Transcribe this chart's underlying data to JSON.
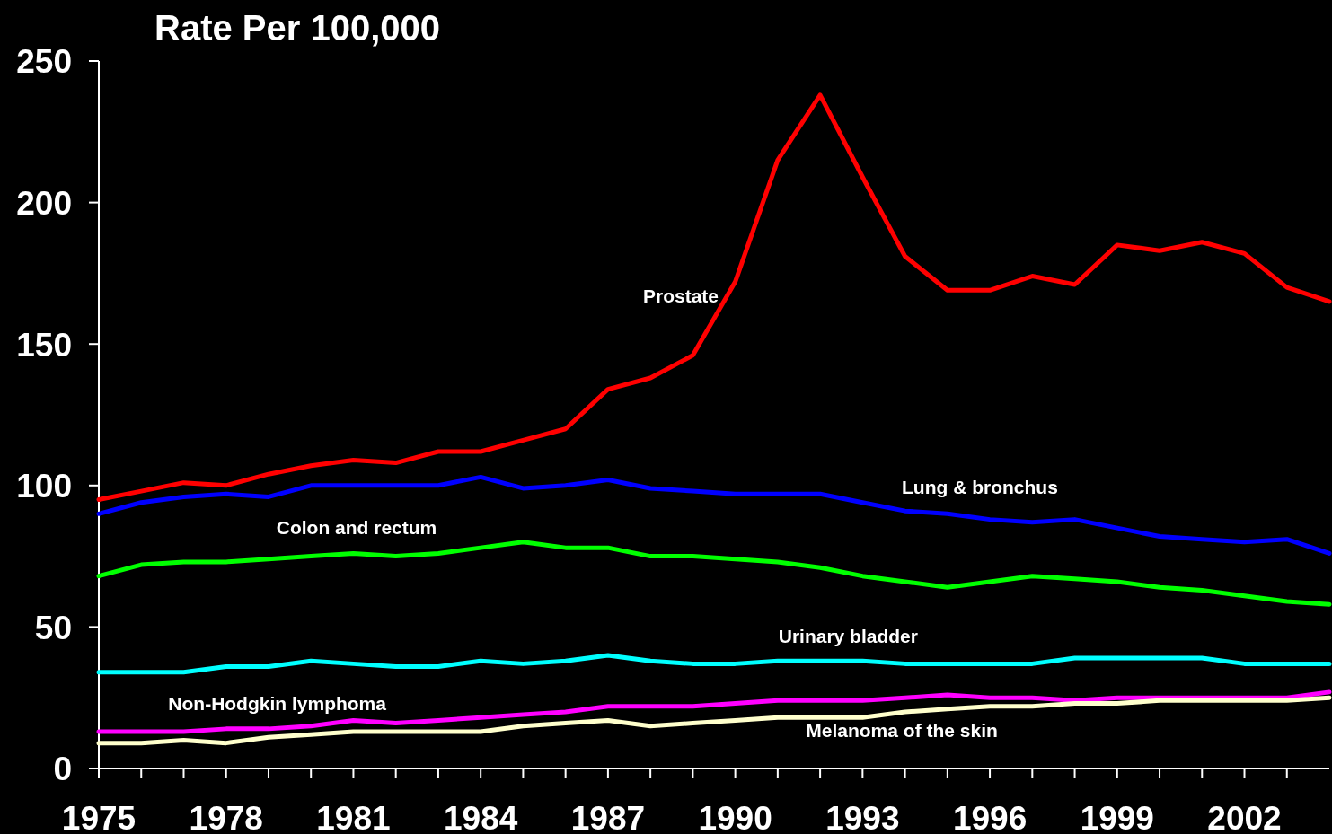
{
  "chart_data": {
    "type": "line",
    "ylabel": "Rate Per 100,000",
    "x": [
      1975,
      1976,
      1977,
      1978,
      1979,
      1980,
      1981,
      1982,
      1983,
      1984,
      1985,
      1986,
      1987,
      1988,
      1989,
      1990,
      1991,
      1992,
      1993,
      1994,
      1995,
      1996,
      1997,
      1998,
      1999,
      2000,
      2001,
      2002,
      2003,
      2004
    ],
    "xlim": [
      1975,
      2004
    ],
    "xticks": [
      1975,
      {
        "value": 1976,
        "label": null
      },
      {
        "value": 1977,
        "label": null
      },
      1978,
      {
        "value": 1979,
        "label": null
      },
      {
        "value": 1980,
        "label": null
      },
      1981,
      {
        "value": 1982,
        "label": null
      },
      {
        "value": 1983,
        "label": null
      },
      1984,
      {
        "value": 1985,
        "label": null
      },
      {
        "value": 1986,
        "label": null
      },
      1987,
      {
        "value": 1988,
        "label": null
      },
      {
        "value": 1989,
        "label": null
      },
      1990,
      {
        "value": 1991,
        "label": null
      },
      {
        "value": 1992,
        "label": null
      },
      1993,
      {
        "value": 1994,
        "label": null
      },
      {
        "value": 1995,
        "label": null
      },
      1996,
      {
        "value": 1997,
        "label": null
      },
      {
        "value": 1998,
        "label": null
      },
      1999,
      {
        "value": 2000,
        "label": null
      },
      {
        "value": 2001,
        "label": null
      },
      2002,
      {
        "value": 2003,
        "label": null
      }
    ],
    "ylim": [
      0,
      250
    ],
    "yticks": [
      0,
      50,
      100,
      150,
      200,
      250
    ],
    "series": [
      {
        "name": "Prostate",
        "color": "#ff0000",
        "values": [
          95,
          98,
          101,
          100,
          104,
          107,
          109,
          108,
          112,
          112,
          116,
          120,
          134,
          138,
          146,
          172,
          215,
          238,
          209,
          181,
          169,
          169,
          174,
          171,
          185,
          183,
          186,
          182,
          170,
          165
        ]
      },
      {
        "name": "Lung & bronchus",
        "color": "#0000ff",
        "values": [
          90,
          94,
          96,
          97,
          96,
          100,
          100,
          100,
          100,
          103,
          99,
          100,
          102,
          99,
          98,
          97,
          97,
          97,
          94,
          91,
          90,
          88,
          87,
          88,
          85,
          82,
          81,
          80,
          81,
          76
        ]
      },
      {
        "name": "Colon and rectum",
        "color": "#00ff00",
        "values": [
          68,
          72,
          73,
          73,
          74,
          75,
          76,
          75,
          76,
          78,
          80,
          78,
          78,
          75,
          75,
          74,
          73,
          71,
          68,
          66,
          64,
          66,
          68,
          67,
          66,
          64,
          63,
          61,
          59,
          58
        ]
      },
      {
        "name": "Urinary bladder",
        "color": "#00ffff",
        "values": [
          34,
          34,
          34,
          36,
          36,
          38,
          37,
          36,
          36,
          38,
          37,
          38,
          40,
          38,
          37,
          37,
          38,
          38,
          38,
          37,
          37,
          37,
          37,
          39,
          39,
          39,
          39,
          37,
          37,
          37
        ]
      },
      {
        "name": "Non-Hodgkin lymphoma",
        "color": "#ff00ff",
        "values": [
          13,
          13,
          13,
          14,
          14,
          15,
          17,
          16,
          17,
          18,
          19,
          20,
          22,
          22,
          22,
          23,
          24,
          24,
          24,
          25,
          26,
          25,
          25,
          24,
          25,
          25,
          25,
          25,
          25,
          27
        ]
      },
      {
        "name": "Melanoma of the skin",
        "color": "#ffffcc",
        "values": [
          9,
          9,
          10,
          9,
          11,
          12,
          13,
          13,
          13,
          13,
          15,
          16,
          17,
          15,
          16,
          17,
          18,
          18,
          18,
          20,
          21,
          22,
          22,
          23,
          23,
          24,
          24,
          24,
          24,
          25
        ]
      }
    ]
  }
}
